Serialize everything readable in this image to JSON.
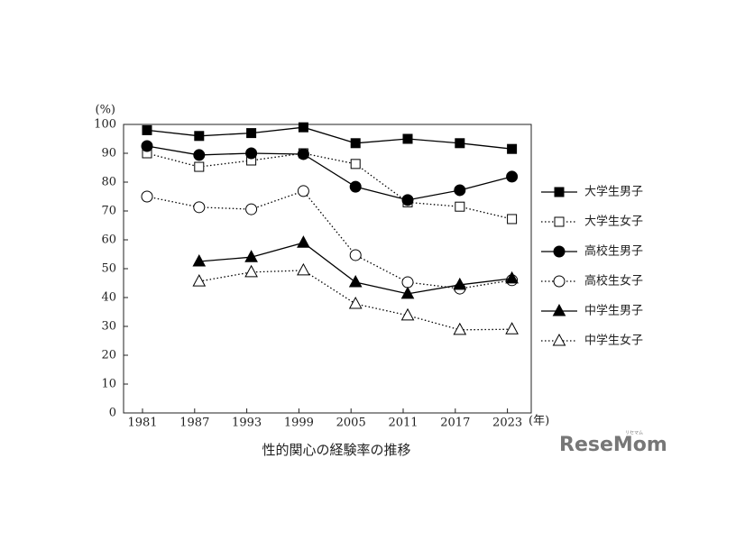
{
  "chart_data": {
    "type": "line",
    "title": "性的関心の経験率の推移",
    "y_unit": "(%)",
    "x_unit": "(年)",
    "watermark": "ReseMom",
    "watermark_sub": "リセマム",
    "categories": [
      "1981",
      "1987",
      "1993",
      "1999",
      "2005",
      "2011",
      "2017",
      "2023"
    ],
    "ylim": [
      0,
      100
    ],
    "yticks": [
      0,
      10,
      20,
      30,
      40,
      50,
      60,
      70,
      80,
      90,
      100
    ],
    "series": [
      {
        "name": "大学生男子",
        "color": "#000000",
        "marker": "square",
        "fill": "filled",
        "dash": "solid",
        "values": [
          98,
          96,
          97,
          99,
          93.5,
          95,
          93.5,
          91.5
        ]
      },
      {
        "name": "大学生女子",
        "color": "#000000",
        "marker": "square",
        "fill": "open",
        "dash": "dotted",
        "values": [
          90,
          85.3,
          87.5,
          90,
          86.3,
          73,
          71.5,
          67.2
        ]
      },
      {
        "name": "高校生男子",
        "color": "#000000",
        "marker": "circle",
        "fill": "filled",
        "dash": "solid",
        "values": [
          92.5,
          89.4,
          90,
          89.7,
          78.4,
          73.8,
          77.2,
          81.9
        ]
      },
      {
        "name": "高校生女子",
        "color": "#000000",
        "marker": "circle",
        "fill": "open",
        "dash": "dotted",
        "values": [
          75,
          71.3,
          70.6,
          76.9,
          54.7,
          45.3,
          43.1,
          46
        ]
      },
      {
        "name": "中学生男子",
        "color": "#000000",
        "marker": "triangle",
        "fill": "filled",
        "dash": "solid",
        "values": [
          null,
          52.5,
          54,
          59,
          45.3,
          41.3,
          44.4,
          46.6
        ]
      },
      {
        "name": "中学生女子",
        "color": "#000000",
        "marker": "triangle",
        "fill": "open",
        "dash": "dotted",
        "values": [
          null,
          45.6,
          48.8,
          49.4,
          37.8,
          33.8,
          28.8,
          29
        ]
      }
    ]
  }
}
